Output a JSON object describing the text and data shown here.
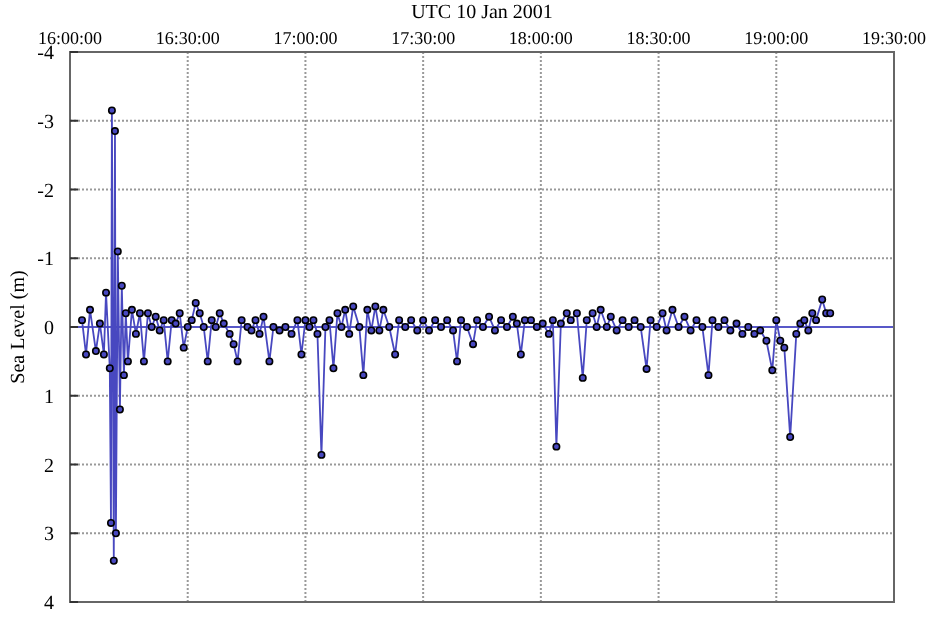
{
  "chart_data": {
    "type": "line",
    "xlabel": "UTC 10 Jan 2001",
    "ylabel": "Sea Level (m)",
    "xlim": [
      16,
      19.5
    ],
    "xticks": [
      {
        "value": 16,
        "label": "16:00:00"
      },
      {
        "value": 16.5,
        "label": "16:30:00"
      },
      {
        "value": 17,
        "label": "17:00:00"
      },
      {
        "value": 17.5,
        "label": "17:30:00"
      },
      {
        "value": 18,
        "label": "18:00:00"
      },
      {
        "value": 18.5,
        "label": "18:30:00"
      },
      {
        "value": 19,
        "label": "19:00:00"
      },
      {
        "value": 19.5,
        "label": "19:30:00"
      }
    ],
    "ylim": [
      4,
      -4
    ],
    "yticks": [
      -4,
      -3,
      -2,
      -1,
      0,
      1,
      2,
      3,
      4
    ],
    "grid": true,
    "marker": "circle",
    "line_style": "solid",
    "ref_lines": [
      {
        "axis": "y",
        "value": 0,
        "color": "#5858c8"
      }
    ],
    "x": [
      16.051,
      16.068,
      16.085,
      16.11,
      16.127,
      16.144,
      16.153,
      16.169,
      16.174,
      16.178,
      16.186,
      16.191,
      16.195,
      16.203,
      16.212,
      16.22,
      16.229,
      16.237,
      16.246,
      16.263,
      16.28,
      16.297,
      16.314,
      16.331,
      16.347,
      16.364,
      16.381,
      16.398,
      16.415,
      16.432,
      16.449,
      16.466,
      16.483,
      16.5,
      16.517,
      16.534,
      16.551,
      16.568,
      16.585,
      16.602,
      16.619,
      16.636,
      16.653,
      16.678,
      16.695,
      16.712,
      16.729,
      16.754,
      16.771,
      16.788,
      16.805,
      16.822,
      16.847,
      16.864,
      16.89,
      16.915,
      16.941,
      16.966,
      16.983,
      17.0,
      17.017,
      17.034,
      17.051,
      17.068,
      17.085,
      17.102,
      17.119,
      17.136,
      17.153,
      17.169,
      17.186,
      17.203,
      17.229,
      17.246,
      17.263,
      17.28,
      17.297,
      17.314,
      17.331,
      17.356,
      17.381,
      17.398,
      17.424,
      17.449,
      17.475,
      17.5,
      17.525,
      17.551,
      17.576,
      17.602,
      17.627,
      17.644,
      17.661,
      17.686,
      17.712,
      17.729,
      17.754,
      17.78,
      17.805,
      17.831,
      17.856,
      17.881,
      17.898,
      17.915,
      17.932,
      17.958,
      17.983,
      18.008,
      18.034,
      18.051,
      18.066,
      18.085,
      18.11,
      18.127,
      18.153,
      18.178,
      18.195,
      18.22,
      18.237,
      18.254,
      18.28,
      18.297,
      18.322,
      18.347,
      18.373,
      18.398,
      18.424,
      18.449,
      18.466,
      18.492,
      18.517,
      18.534,
      18.559,
      18.585,
      18.61,
      18.636,
      18.661,
      18.686,
      18.712,
      18.729,
      18.754,
      18.78,
      18.805,
      18.831,
      18.856,
      18.881,
      18.907,
      18.932,
      18.958,
      18.983,
      19.0,
      19.017,
      19.034,
      19.059,
      19.085,
      19.102,
      19.119,
      19.136,
      19.153,
      19.169,
      19.195,
      19.212,
      19.229
    ],
    "series": [
      {
        "color": "#4848c0",
        "values": [
          -0.1,
          0.4,
          -0.25,
          0.35,
          -0.05,
          0.4,
          -0.5,
          0.6,
          2.85,
          -3.15,
          3.4,
          -2.85,
          3.0,
          -1.1,
          1.2,
          -0.6,
          0.7,
          -0.2,
          0.5,
          -0.25,
          0.1,
          -0.2,
          0.5,
          -0.2,
          0.0,
          -0.15,
          0.05,
          -0.1,
          0.5,
          -0.1,
          -0.05,
          -0.2,
          0.3,
          0.0,
          -0.1,
          -0.35,
          -0.2,
          0.0,
          0.5,
          -0.1,
          0.0,
          -0.2,
          -0.05,
          0.1,
          0.25,
          0.5,
          -0.1,
          0.0,
          0.05,
          -0.1,
          0.1,
          -0.15,
          0.5,
          0.0,
          0.05,
          0.0,
          0.1,
          -0.1,
          0.4,
          -0.1,
          0.0,
          -0.1,
          0.1,
          1.86,
          0.0,
          -0.1,
          0.6,
          -0.2,
          0.0,
          -0.25,
          0.1,
          -0.3,
          0.0,
          0.7,
          -0.25,
          0.05,
          -0.3,
          0.05,
          -0.25,
          0.0,
          0.4,
          -0.1,
          0.0,
          -0.1,
          0.05,
          -0.1,
          0.05,
          -0.1,
          0.0,
          -0.1,
          0.05,
          0.5,
          -0.1,
          0.0,
          0.25,
          -0.1,
          0.0,
          -0.15,
          0.05,
          -0.1,
          0.0,
          -0.15,
          -0.05,
          0.4,
          -0.1,
          -0.1,
          0.0,
          -0.05,
          0.1,
          -0.1,
          1.74,
          -0.05,
          -0.2,
          -0.1,
          -0.2,
          0.74,
          -0.1,
          -0.2,
          0.0,
          -0.25,
          0.0,
          -0.15,
          0.05,
          -0.1,
          0.0,
          -0.1,
          0.0,
          0.61,
          -0.1,
          0.0,
          -0.2,
          0.05,
          -0.25,
          0.0,
          -0.15,
          0.05,
          -0.1,
          0.0,
          0.7,
          -0.1,
          0.0,
          -0.1,
          0.05,
          -0.05,
          0.1,
          0.0,
          0.1,
          0.05,
          0.2,
          0.63,
          -0.1,
          0.2,
          0.3,
          1.6,
          0.1,
          -0.05,
          -0.1,
          0.05,
          -0.2,
          -0.1,
          -0.4,
          -0.2,
          -0.2
        ]
      }
    ]
  }
}
